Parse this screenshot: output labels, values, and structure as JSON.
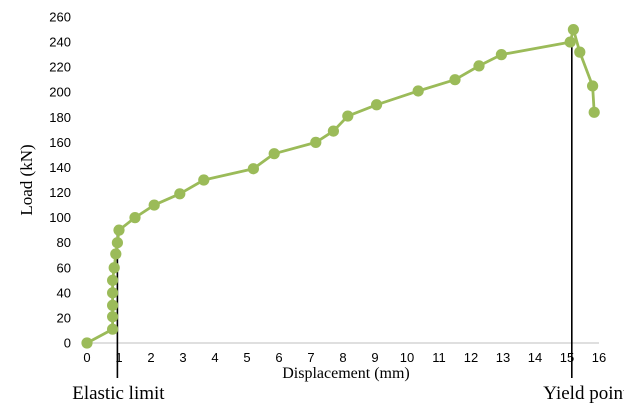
{
  "chart_data": {
    "type": "line",
    "xlabel": "Displacement (mm)",
    "ylabel": "Load (kN)",
    "xlim": [
      0,
      16
    ],
    "ylim": [
      0,
      260
    ],
    "xticks": [
      "0",
      "1",
      "2",
      "3",
      "4",
      "5",
      "6",
      "7",
      "8",
      "9",
      "10",
      "11",
      "12",
      "13",
      "14",
      "15",
      "16"
    ],
    "yticks": [
      "0",
      "20",
      "40",
      "60",
      "80",
      "100",
      "120",
      "140",
      "160",
      "180",
      "200",
      "220",
      "240",
      "260"
    ],
    "grid": false,
    "legend": "none",
    "series": [
      {
        "color": "#9bbb59",
        "x": [
          0,
          0.8,
          0.8,
          0.8,
          0.8,
          0.8,
          0.85,
          0.9,
          0.95,
          1.0,
          1.5,
          2.1,
          2.9,
          3.65,
          5.2,
          5.85,
          7.15,
          7.7,
          8.15,
          9.05,
          10.35,
          11.5,
          12.25,
          12.95,
          15.1,
          15.2,
          15.4,
          15.8,
          15.85
        ],
        "y": [
          0,
          11,
          21,
          30,
          40,
          50,
          60,
          71,
          80,
          90,
          100,
          110,
          119,
          130,
          139,
          151,
          160,
          169,
          181,
          190,
          201,
          210,
          221,
          230,
          240,
          250,
          232,
          205,
          184
        ]
      }
    ],
    "annotations": [
      {
        "text": "Elastic limit",
        "x": 0.95,
        "y_top": 92
      },
      {
        "text": "Yield point",
        "x": 15.15,
        "y_top": 242
      }
    ]
  }
}
